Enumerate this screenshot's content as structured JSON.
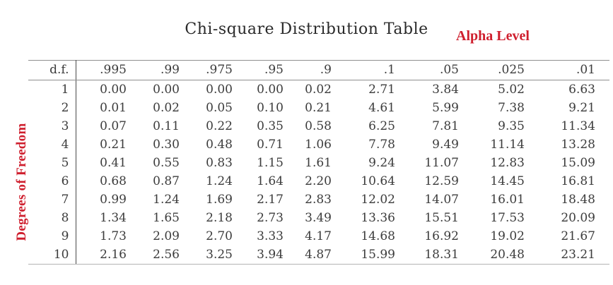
{
  "page": {
    "title": "Chi-square Distribution Table",
    "alpha_level_label": "Alpha Level",
    "degrees_of_freedom_label": "Degrees of Freedom"
  },
  "colors": {
    "accent_red": "#cf1f2e",
    "text": "#3c3c3c",
    "rule_gray": "#8f8f8f",
    "divider_gray": "#4a4a4a"
  },
  "chart_data": {
    "type": "table",
    "title": "Chi-square Distribution Table",
    "column_group_label": "Alpha Level",
    "row_group_label": "Degrees of Freedom",
    "corner_header": "d.f.",
    "column_headers": [
      ".995",
      ".99",
      ".975",
      ".95",
      ".9",
      ".1",
      ".05",
      ".025",
      ".01"
    ],
    "row_headers": [
      "1",
      "2",
      "3",
      "4",
      "5",
      "6",
      "7",
      "8",
      "9",
      "10"
    ],
    "rows": [
      [
        "0.00",
        "0.00",
        "0.00",
        "0.00",
        "0.02",
        "2.71",
        "3.84",
        "5.02",
        "6.63"
      ],
      [
        "0.01",
        "0.02",
        "0.05",
        "0.10",
        "0.21",
        "4.61",
        "5.99",
        "7.38",
        "9.21"
      ],
      [
        "0.07",
        "0.11",
        "0.22",
        "0.35",
        "0.58",
        "6.25",
        "7.81",
        "9.35",
        "11.34"
      ],
      [
        "0.21",
        "0.30",
        "0.48",
        "0.71",
        "1.06",
        "7.78",
        "9.49",
        "11.14",
        "13.28"
      ],
      [
        "0.41",
        "0.55",
        "0.83",
        "1.15",
        "1.61",
        "9.24",
        "11.07",
        "12.83",
        "15.09"
      ],
      [
        "0.68",
        "0.87",
        "1.24",
        "1.64",
        "2.20",
        "10.64",
        "12.59",
        "14.45",
        "16.81"
      ],
      [
        "0.99",
        "1.24",
        "1.69",
        "2.17",
        "2.83",
        "12.02",
        "14.07",
        "16.01",
        "18.48"
      ],
      [
        "1.34",
        "1.65",
        "2.18",
        "2.73",
        "3.49",
        "13.36",
        "15.51",
        "17.53",
        "20.09"
      ],
      [
        "1.73",
        "2.09",
        "2.70",
        "3.33",
        "4.17",
        "14.68",
        "16.92",
        "19.02",
        "21.67"
      ],
      [
        "2.16",
        "2.56",
        "3.25",
        "3.94",
        "4.87",
        "15.99",
        "18.31",
        "20.48",
        "23.21"
      ]
    ]
  }
}
